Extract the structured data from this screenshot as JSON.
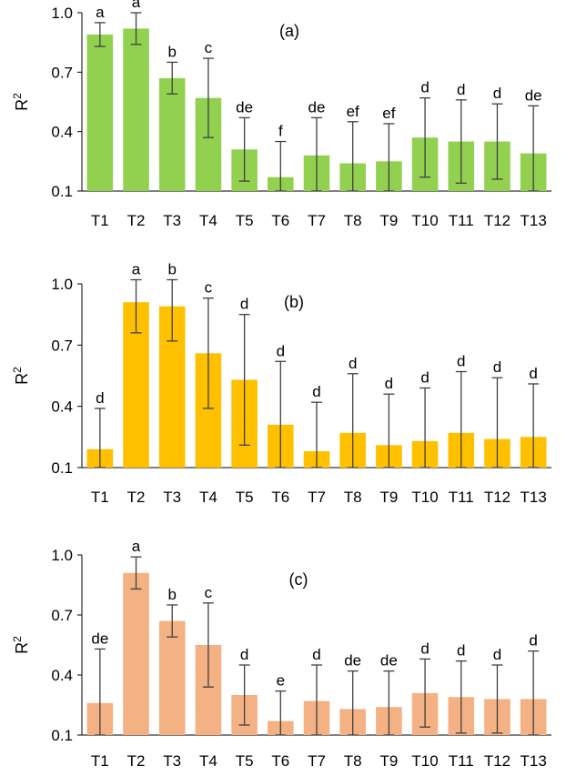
{
  "chart_data": [
    {
      "type": "bar",
      "panel_label": "(a)",
      "ylabel": "R",
      "ylabel_sup": "2",
      "ylim": [
        0.1,
        1.0
      ],
      "yticks": [
        "0.1",
        "0.4",
        "0.7",
        "1.0"
      ],
      "ytick_values": [
        0.1,
        0.4,
        0.7,
        1.0
      ],
      "color": "#92D050",
      "categories": [
        "T1",
        "T2",
        "T3",
        "T4",
        "T5",
        "T6",
        "T7",
        "T8",
        "T9",
        "T10",
        "T11",
        "T12",
        "T13"
      ],
      "values": [
        0.89,
        0.92,
        0.67,
        0.57,
        0.31,
        0.17,
        0.28,
        0.24,
        0.25,
        0.37,
        0.35,
        0.35,
        0.29
      ],
      "errors": [
        0.06,
        0.08,
        0.08,
        0.2,
        0.16,
        0.18,
        0.19,
        0.21,
        0.19,
        0.2,
        0.21,
        0.19,
        0.24
      ],
      "labels": [
        "a",
        "a",
        "b",
        "c",
        "de",
        "f",
        "de",
        "ef",
        "ef",
        "d",
        "d",
        "d",
        "de"
      ]
    },
    {
      "type": "bar",
      "panel_label": "(b)",
      "ylabel": "R",
      "ylabel_sup": "2",
      "ylim": [
        0.1,
        1.0
      ],
      "yticks": [
        "0.1",
        "0.4",
        "0.7",
        "1.0"
      ],
      "ytick_values": [
        0.1,
        0.4,
        0.7,
        1.0
      ],
      "color": "#FFC000",
      "categories": [
        "T1",
        "T2",
        "T3",
        "T4",
        "T5",
        "T6",
        "T7",
        "T8",
        "T9",
        "T10",
        "T11",
        "T12",
        "T13"
      ],
      "values": [
        0.19,
        0.91,
        0.89,
        0.66,
        0.53,
        0.31,
        0.18,
        0.27,
        0.21,
        0.23,
        0.27,
        0.24,
        0.25
      ],
      "errors": [
        0.2,
        0.15,
        0.17,
        0.27,
        0.32,
        0.31,
        0.24,
        0.29,
        0.25,
        0.26,
        0.3,
        0.3,
        0.26
      ],
      "labels": [
        "d",
        "a",
        "b",
        "c",
        "d",
        "d",
        "d",
        "d",
        "d",
        "d",
        "d",
        "d",
        "d"
      ]
    },
    {
      "type": "bar",
      "panel_label": "(c)",
      "ylabel": "R",
      "ylabel_sup": "2",
      "ylim": [
        0.1,
        1.0
      ],
      "yticks": [
        "0.1",
        "0.4",
        "0.7",
        "1.0"
      ],
      "ytick_values": [
        0.1,
        0.4,
        0.7,
        1.0
      ],
      "color": "#F4B183",
      "categories": [
        "T1",
        "T2",
        "T3",
        "T4",
        "T5",
        "T6",
        "T7",
        "T8",
        "T9",
        "T10",
        "T11",
        "T12",
        "T13"
      ],
      "values": [
        0.26,
        0.91,
        0.67,
        0.55,
        0.3,
        0.17,
        0.27,
        0.23,
        0.24,
        0.31,
        0.29,
        0.28,
        0.28
      ],
      "errors": [
        0.27,
        0.08,
        0.08,
        0.21,
        0.15,
        0.15,
        0.18,
        0.19,
        0.18,
        0.17,
        0.18,
        0.17,
        0.24
      ],
      "labels": [
        "de",
        "a",
        "b",
        "c",
        "d",
        "e",
        "d",
        "de",
        "de",
        "d",
        "d",
        "d",
        "d"
      ]
    }
  ]
}
